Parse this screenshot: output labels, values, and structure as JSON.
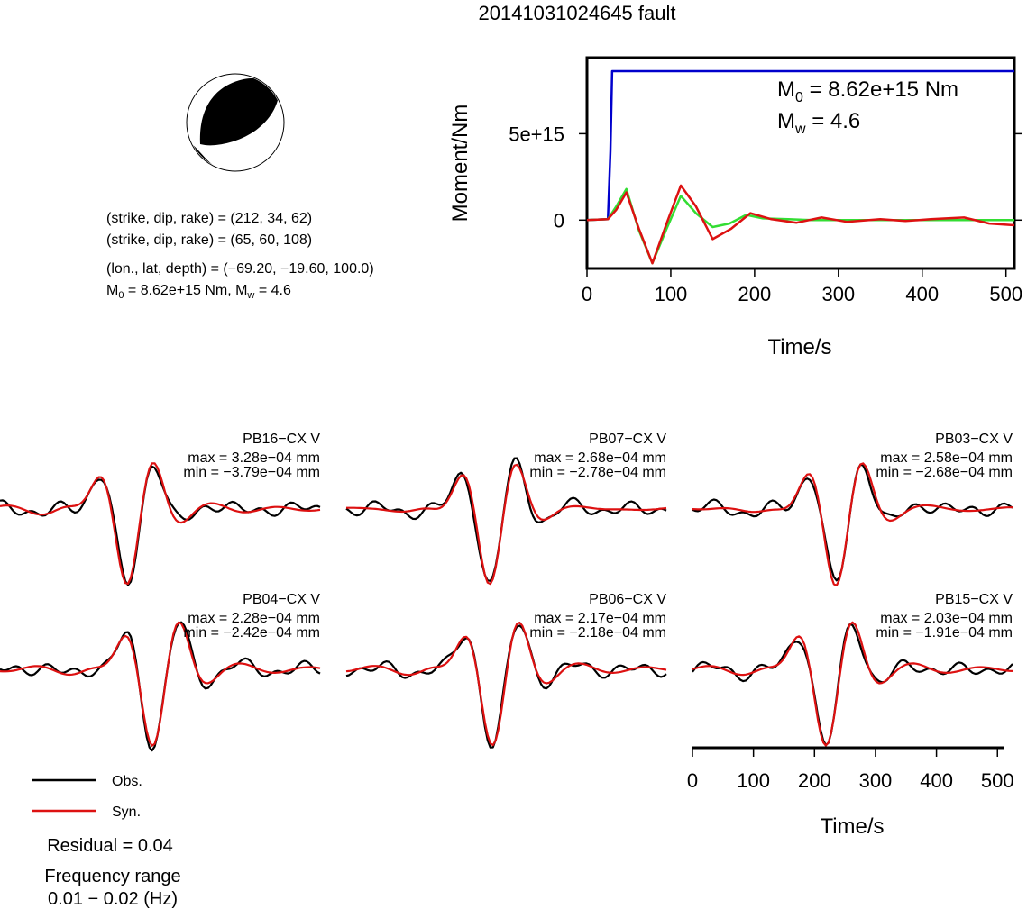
{
  "title": "20141031024645 fault",
  "mechanism": {
    "line1": "(strike, dip, rake) = (212, 34, 62)",
    "line2": "(strike, dip, rake) = (65, 60, 108)",
    "line3": "(lon., lat, depth) = (−69.20, −19.60, 100.0)",
    "m0_value": " = 8.62e+15 Nm, M",
    "mw_value": " = 4.6"
  },
  "chart_data": [
    {
      "type": "line",
      "title": "",
      "xlabel": "Time/s",
      "ylabel": "Moment/Nm",
      "xlim": [
        0,
        510
      ],
      "ylim": [
        -2800000000000000.0,
        9400000000000000.0
      ],
      "xticks": [
        "0",
        "100",
        "200",
        "300",
        "400",
        "500"
      ],
      "yticks": [
        "0",
        "5e+15"
      ],
      "annotation": {
        "m0": "M",
        "m0_sub": "0",
        "m0_val": " = 8.62e+15 Nm",
        "mw": "M",
        "mw_sub": "w",
        "mw_val": " = 4.6"
      },
      "series": [
        {
          "color": "#0000cc",
          "x": [
            0,
            25,
            28,
            30,
            510
          ],
          "y": [
            0,
            50000000000000.0,
            4000000000000000.0,
            8620000000000000.0,
            8620000000000000.0
          ]
        },
        {
          "color": "#33dd33",
          "x": [
            0,
            25,
            35,
            47,
            62,
            78,
            95,
            112,
            130,
            150,
            170,
            190,
            210,
            240,
            270,
            300,
            510
          ],
          "y": [
            0,
            50000000000000.0,
            800000000000000.0,
            1800000000000000.0,
            -600000000000000.0,
            -2500000000000000.0,
            -500000000000000.0,
            1400000000000000.0,
            400000000000000.0,
            -400000000000000.0,
            -200000000000000.0,
            300000000000000.0,
            100000000000000.0,
            50000000000000.0,
            0,
            0,
            0
          ]
        },
        {
          "color": "#dd1111",
          "x": [
            0,
            25,
            35,
            47,
            62,
            78,
            95,
            112,
            130,
            150,
            172,
            195,
            220,
            250,
            280,
            310,
            350,
            380,
            410,
            450,
            480,
            510
          ],
          "y": [
            0,
            50000000000000.0,
            600000000000000.0,
            1600000000000000.0,
            -500000000000000.0,
            -2500000000000000.0,
            -200000000000000.0,
            2000000000000000.0,
            800000000000000.0,
            -1100000000000000.0,
            -500000000000000.0,
            400000000000000.0,
            50000000000000.0,
            -150000000000000.0,
            150000000000000.0,
            -100000000000000.0,
            50000000000000.0,
            -50000000000000.0,
            50000000000000.0,
            150000000000000.0,
            -200000000000000.0,
            -300000000000000.0
          ]
        }
      ]
    },
    {
      "type": "line",
      "panels": [
        {
          "station": "PB16−CX V",
          "max": "max = 3.28e−04 mm",
          "min": "min = −3.79e−04 mm",
          "peaks": [
            33,
            54
          ],
          "trough": 40
        },
        {
          "station": "PB07−CX V",
          "max": "max = 2.68e−04 mm",
          "min": "min = −2.78e−04 mm",
          "peaks": [
            31,
            58
          ],
          "trough": 45
        },
        {
          "station": "PB03−CX V",
          "max": "max = 2.58e−04 mm",
          "min": "min = −2.68e−04 mm",
          "peaks": [
            31,
            60
          ],
          "trough": 45
        },
        {
          "station": "PB04−CX V",
          "max": "max = 2.28e−04 mm",
          "min": "min = −2.42e−04 mm",
          "peaks": [
            36,
            60
          ],
          "trough": 48
        },
        {
          "station": "PB06−CX V",
          "max": "max = 2.17e−04 mm",
          "min": "min = −2.18e−04 mm",
          "peaks": [
            33,
            61
          ],
          "trough": 46
        },
        {
          "station": "PB15−CX V",
          "max": "max = 2.03e−04 mm",
          "min": "min = −1.91e−04 mm",
          "peaks": [
            30,
            52
          ],
          "trough": 42
        }
      ],
      "xlabel": "Time/s",
      "xlim": [
        0,
        510
      ],
      "xticks": [
        "0",
        "100",
        "200",
        "300",
        "400",
        "500"
      ]
    }
  ],
  "legend": {
    "obs": "Obs.",
    "syn": "Syn.",
    "obs_color": "#000000",
    "syn_color": "#dd1111"
  },
  "residual": "Residual = 0.04",
  "freq_label": "Frequency range",
  "freq_value": "0.01 − 0.02 (Hz)"
}
